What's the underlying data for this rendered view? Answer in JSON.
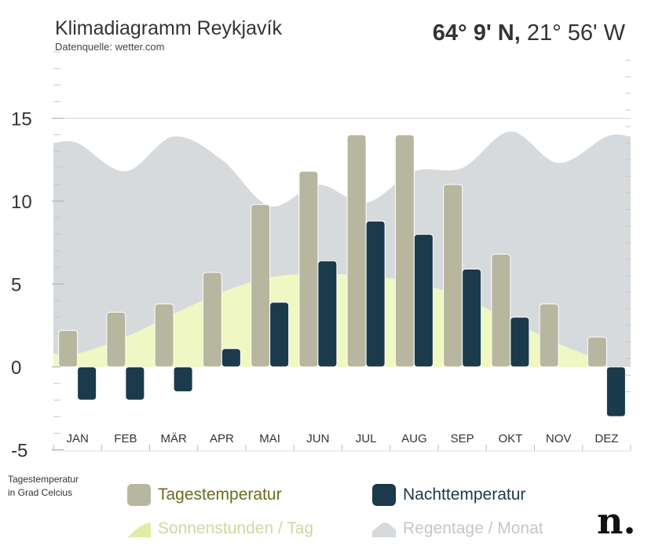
{
  "header": {
    "title": "Klimadiagramm Reykjavík",
    "source": "Datenquelle: wetter.com",
    "latitude": "64° 9' N,",
    "longitude": "21° 56' W"
  },
  "caption": {
    "line1": "Tagestemperatur",
    "line2": "in Grad Celcius"
  },
  "legend": {
    "day_temp": "Tagestemperatur",
    "night_temp": "Nachttemperatur",
    "sunshine": "Sonnenstunden / Tag",
    "rain_days": "Regentage / Monat"
  },
  "brand": {
    "logo": "n."
  },
  "colors": {
    "day_bar": "#b7b7a0",
    "night_bar": "#1b3a4b",
    "sunshine_area": "#eff7c3",
    "rain_area": "#d6dadd",
    "day_legend_text": "#6b6b1e",
    "night_legend_text": "#1b3a4b",
    "sunshine_legend_text": "#cfd9a0",
    "rain_legend_text": "#c2c8cc",
    "axis_text": "#333333",
    "gridline": "#d8d8c8"
  },
  "chart_data": {
    "type": "bar",
    "title": "Klimadiagramm Reykjavík",
    "ylabel": "Tagestemperatur in Grad Celcius",
    "ylim": [
      -5,
      19
    ],
    "yticks": [
      -5,
      0,
      5,
      10,
      15
    ],
    "grid": true,
    "legend_position": "bottom",
    "categories": [
      "JAN",
      "FEB",
      "MÄR",
      "APR",
      "MAI",
      "JUN",
      "JUL",
      "AUG",
      "SEP",
      "OKT",
      "NOV",
      "DEZ"
    ],
    "series": [
      {
        "name": "Tagestemperatur",
        "kind": "bar",
        "values": [
          2.2,
          3.3,
          3.8,
          5.7,
          9.8,
          11.8,
          14,
          14,
          11,
          6.8,
          3.8,
          1.8
        ]
      },
      {
        "name": "Nachttemperatur",
        "kind": "bar",
        "values": [
          -2,
          -2,
          -1.5,
          1.1,
          3.9,
          6.4,
          8.8,
          8,
          5.9,
          3,
          0,
          -3
        ]
      },
      {
        "name": "Sonnenstunden / Tag",
        "kind": "area",
        "values": [
          0.8,
          1.8,
          3.2,
          4.5,
          5.4,
          5.6,
          5.5,
          5.1,
          4.2,
          2.8,
          1.4,
          0.3
        ]
      },
      {
        "name": "Regentage / Monat",
        "kind": "area",
        "values": [
          13.5,
          11.8,
          13.9,
          12.5,
          9.7,
          11,
          9.9,
          11.8,
          12,
          14.2,
          12.3,
          13.9
        ]
      }
    ]
  }
}
